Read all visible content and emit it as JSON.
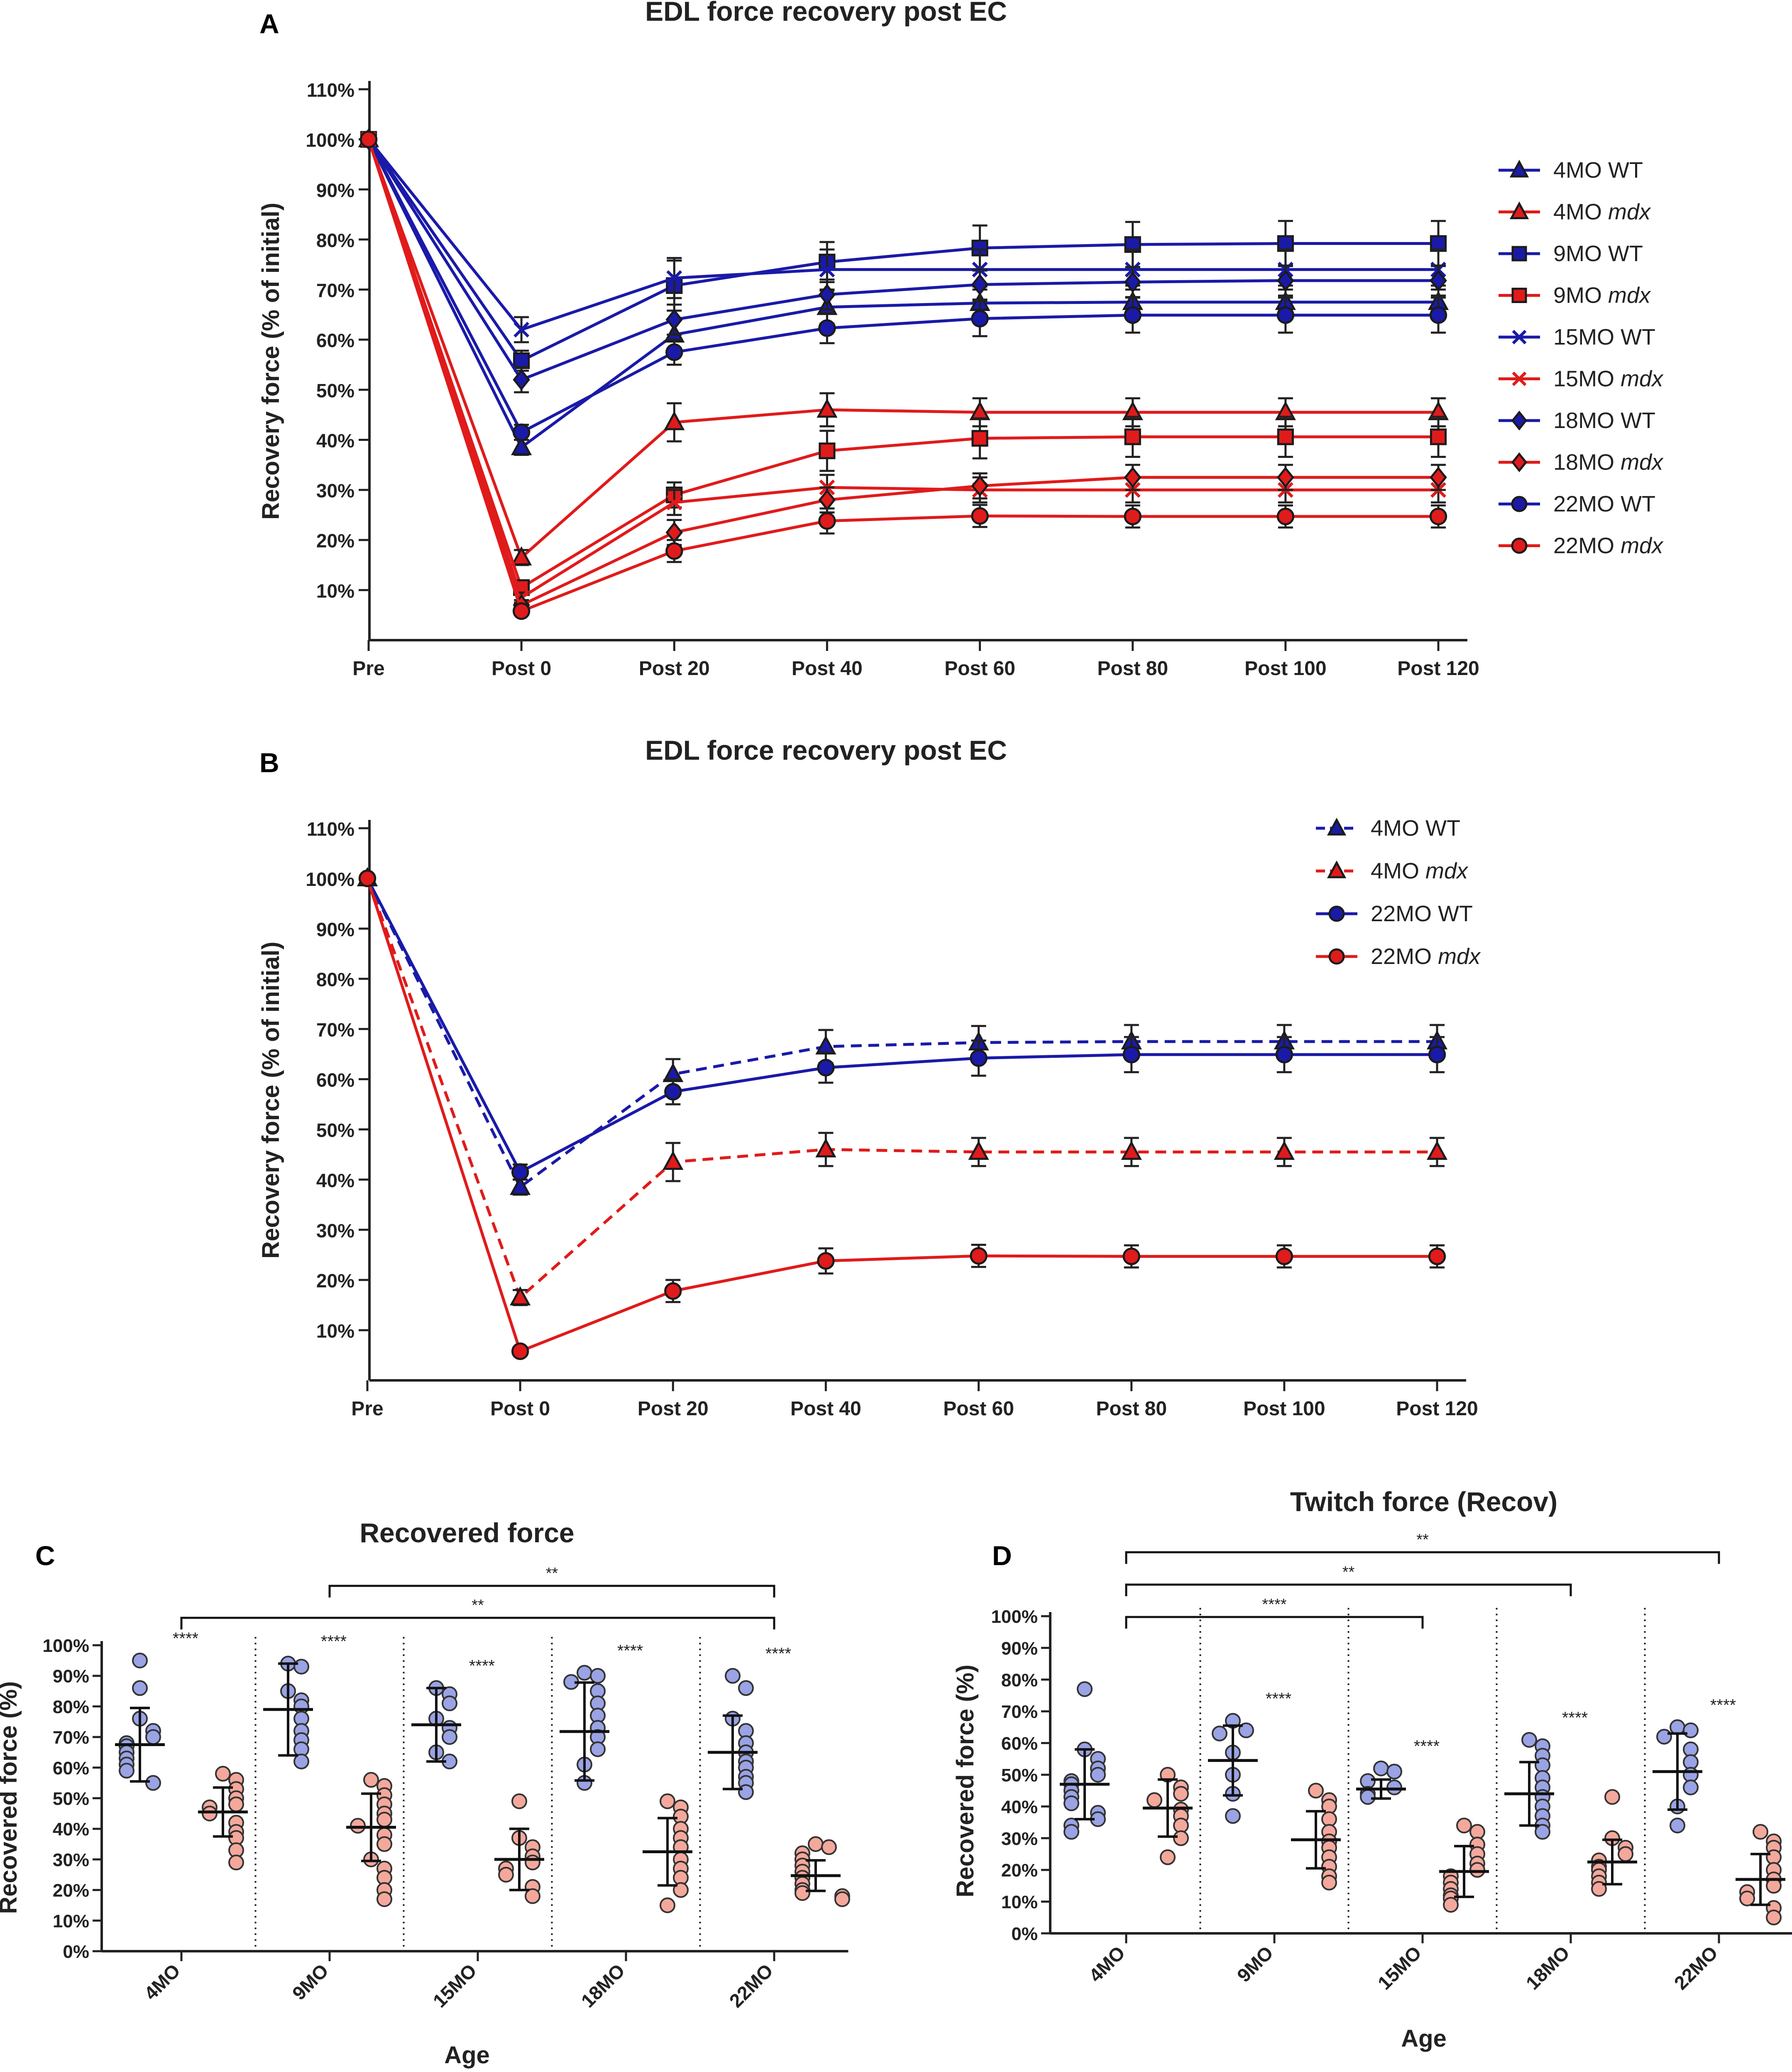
{
  "figure": {
    "panels": [
      "A",
      "B",
      "C",
      "D"
    ]
  },
  "colors": {
    "wt_line": "#1a1aa8",
    "mdx_line": "#e01b1b",
    "wt_dot": "#9aa3e4",
    "mdx_dot": "#f4a89c",
    "axis": "#222222"
  },
  "chart_data": [
    {
      "panel": "A",
      "type": "line",
      "title": "EDL force recovery post EC",
      "xlabel": "",
      "ylabel": "Recovery force (% of initial)",
      "categories": [
        "Pre",
        "Post 0",
        "Post 20",
        "Post 40",
        "Post 60",
        "Post 80",
        "Post 100",
        "Post 120"
      ],
      "ylim": [
        0,
        110
      ],
      "yticks": [
        10,
        20,
        30,
        40,
        50,
        60,
        70,
        80,
        90,
        100,
        110
      ],
      "ytick_labels": [
        "10%",
        "20%",
        "30%",
        "40%",
        "50%",
        "60%",
        "70%",
        "80%",
        "90%",
        "100%",
        "110%"
      ],
      "legend_position": "right",
      "series": [
        {
          "name": "4MO WT",
          "age": "4MO",
          "geno": "WT",
          "marker": "triangle",
          "values": [
            100,
            38.5,
            61,
            66.5,
            67.3,
            67.5,
            67.5,
            67.5
          ],
          "err": [
            0,
            1.5,
            3,
            3.3,
            3.3,
            3.3,
            3.3,
            3.3
          ]
        },
        {
          "name": "4MO mdx",
          "age": "4MO",
          "geno": "mdx",
          "marker": "triangle",
          "values": [
            100,
            16.5,
            43.5,
            46,
            45.5,
            45.5,
            45.5,
            45.5
          ],
          "err": [
            0,
            1.5,
            3.8,
            3.3,
            2.8,
            2.8,
            2.8,
            2.8
          ]
        },
        {
          "name": "9MO WT",
          "age": "9MO",
          "geno": "WT",
          "marker": "square",
          "values": [
            100,
            55.8,
            70.8,
            75.5,
            78.3,
            79,
            79.2,
            79.2
          ],
          "err": [
            0,
            2,
            5,
            4,
            4.5,
            4.5,
            4.5,
            4.5
          ]
        },
        {
          "name": "9MO mdx",
          "age": "9MO",
          "geno": "mdx",
          "marker": "square",
          "values": [
            100,
            10.5,
            29,
            37.8,
            40.3,
            40.6,
            40.6,
            40.6
          ],
          "err": [
            0,
            1,
            2.5,
            4,
            4,
            4,
            4,
            4
          ]
        },
        {
          "name": "15MO WT",
          "age": "15MO",
          "geno": "WT",
          "marker": "cross",
          "values": [
            100,
            62,
            72.3,
            74,
            74,
            74,
            74,
            74
          ],
          "err": [
            0,
            2.5,
            4,
            4,
            4,
            4,
            4,
            4
          ]
        },
        {
          "name": "15MO mdx",
          "age": "15MO",
          "geno": "mdx",
          "marker": "cross",
          "values": [
            100,
            8.5,
            27.5,
            30.5,
            30,
            30,
            30,
            30
          ],
          "err": [
            0,
            1,
            2.5,
            2.5,
            2.5,
            2.5,
            2.5,
            2.5
          ]
        },
        {
          "name": "18MO WT",
          "age": "18MO",
          "geno": "WT",
          "marker": "diamond",
          "values": [
            100,
            52,
            64,
            69,
            71,
            71.5,
            71.8,
            71.8
          ],
          "err": [
            0,
            2.5,
            3,
            3,
            3,
            3,
            3,
            3
          ]
        },
        {
          "name": "18MO mdx",
          "age": "18MO",
          "geno": "mdx",
          "marker": "diamond",
          "values": [
            100,
            7,
            21.5,
            28,
            30.8,
            32.5,
            32.5,
            32.5
          ],
          "err": [
            0,
            1,
            2.5,
            2.5,
            2.5,
            2.5,
            2.5,
            2.5
          ]
        },
        {
          "name": "22MO WT",
          "age": "22MO",
          "geno": "WT",
          "marker": "circle",
          "values": [
            100,
            41.5,
            57.5,
            62.3,
            64.2,
            64.9,
            64.9,
            64.9
          ],
          "err": [
            0,
            1.5,
            2.5,
            3,
            3.5,
            3.5,
            3.5,
            3.5
          ]
        },
        {
          "name": "22MO mdx",
          "age": "22MO",
          "geno": "mdx",
          "marker": "circle",
          "values": [
            100,
            5.8,
            17.8,
            23.8,
            24.8,
            24.7,
            24.7,
            24.7
          ],
          "err": [
            0,
            0.8,
            2.2,
            2.5,
            2.2,
            2.2,
            2.2,
            2.2
          ]
        }
      ]
    },
    {
      "panel": "B",
      "type": "line",
      "title": "EDL force recovery post EC",
      "xlabel": "",
      "ylabel": "Recovery force (% of initial)",
      "categories": [
        "Pre",
        "Post 0",
        "Post 20",
        "Post 40",
        "Post 60",
        "Post 80",
        "Post 100",
        "Post 120"
      ],
      "ylim": [
        0,
        110
      ],
      "yticks": [
        10,
        20,
        30,
        40,
        50,
        60,
        70,
        80,
        90,
        100,
        110
      ],
      "ytick_labels": [
        "10%",
        "20%",
        "30%",
        "40%",
        "50%",
        "60%",
        "70%",
        "80%",
        "90%",
        "100%",
        "110%"
      ],
      "legend_position": "top-right",
      "series": [
        {
          "name": "4MO WT",
          "age": "4MO",
          "geno": "WT",
          "marker": "triangle",
          "dashed": true,
          "values": [
            100,
            38.5,
            61,
            66.5,
            67.3,
            67.5,
            67.5,
            67.5
          ],
          "err": [
            0,
            1.5,
            3,
            3.3,
            3.3,
            3.3,
            3.3,
            3.3
          ]
        },
        {
          "name": "4MO mdx",
          "age": "4MO",
          "geno": "mdx",
          "marker": "triangle",
          "dashed": true,
          "values": [
            100,
            16.5,
            43.5,
            46,
            45.5,
            45.5,
            45.5,
            45.5
          ],
          "err": [
            0,
            1.5,
            3.8,
            3.3,
            2.8,
            2.8,
            2.8,
            2.8
          ]
        },
        {
          "name": "22MO WT",
          "age": "22MO",
          "geno": "WT",
          "marker": "circle",
          "dashed": false,
          "values": [
            100,
            41.5,
            57.5,
            62.3,
            64.2,
            64.9,
            64.9,
            64.9
          ],
          "err": [
            0,
            1.5,
            2.5,
            3,
            3.5,
            3.5,
            3.5,
            3.5
          ]
        },
        {
          "name": "22MO mdx",
          "age": "22MO",
          "geno": "mdx",
          "marker": "circle",
          "dashed": false,
          "values": [
            100,
            5.8,
            17.8,
            23.8,
            24.8,
            24.7,
            24.7,
            24.7
          ],
          "err": [
            0,
            0.8,
            2.2,
            2.5,
            2.2,
            2.2,
            2.2,
            2.2
          ]
        }
      ]
    },
    {
      "panel": "C",
      "type": "scatter",
      "title": "Recovered force",
      "xlabel": "Age",
      "ylabel": "Recovered force (%)",
      "categories": [
        "4MO",
        "9MO",
        "15MO",
        "18MO",
        "22MO"
      ],
      "ylim": [
        0,
        100
      ],
      "yticks": [
        0,
        10,
        20,
        30,
        40,
        50,
        60,
        70,
        80,
        90,
        100
      ],
      "ytick_labels": [
        "0%",
        "10%",
        "20%",
        "30%",
        "40%",
        "50%",
        "60%",
        "70%",
        "80%",
        "90%",
        "100%"
      ],
      "groups": [
        {
          "age": "4MO",
          "geno": "WT",
          "mean": 67.5,
          "sd": 12,
          "points": [
            95,
            86,
            76,
            72,
            70,
            68,
            67,
            65,
            63,
            61,
            59,
            55
          ]
        },
        {
          "age": "4MO",
          "geno": "mdx",
          "mean": 45.5,
          "sd": 8,
          "points": [
            58,
            56,
            53,
            50,
            48,
            47,
            45,
            42,
            39,
            37,
            33,
            29
          ]
        },
        {
          "age": "9MO",
          "geno": "WT",
          "mean": 79,
          "sd": 15,
          "points": [
            94,
            93,
            85,
            82,
            80,
            76,
            72,
            69,
            66,
            62
          ]
        },
        {
          "age": "9MO",
          "geno": "mdx",
          "mean": 40.5,
          "sd": 11,
          "points": [
            56,
            54,
            51,
            48,
            45,
            43,
            41,
            38,
            35,
            30,
            27,
            24,
            20,
            17
          ]
        },
        {
          "age": "15MO",
          "geno": "WT",
          "mean": 74,
          "sd": 12,
          "points": [
            86,
            84,
            81,
            76,
            73,
            70,
            65,
            62
          ]
        },
        {
          "age": "15MO",
          "geno": "mdx",
          "mean": 30,
          "sd": 10,
          "points": [
            49,
            37,
            34,
            31,
            29,
            27,
            25,
            21,
            18
          ]
        },
        {
          "age": "18MO",
          "geno": "WT",
          "mean": 71.8,
          "sd": 16,
          "points": [
            91,
            90,
            88,
            85,
            81,
            77,
            73,
            70,
            66,
            61,
            55
          ]
        },
        {
          "age": "18MO",
          "geno": "mdx",
          "mean": 32.5,
          "sd": 11,
          "points": [
            49,
            47,
            44,
            40,
            37,
            34,
            30,
            27,
            24,
            20,
            15
          ]
        },
        {
          "age": "22MO",
          "geno": "WT",
          "mean": 65,
          "sd": 12,
          "points": [
            90,
            86,
            76,
            72,
            68,
            65,
            62,
            60,
            57,
            55,
            52
          ]
        },
        {
          "age": "22MO",
          "geno": "mdx",
          "mean": 24.7,
          "sd": 5,
          "points": [
            35,
            34,
            32,
            30,
            28,
            26,
            24,
            22,
            20,
            19,
            18,
            17
          ]
        }
      ],
      "significance": [
        {
          "label": "****",
          "group": "4MO"
        },
        {
          "label": "****",
          "group": "9MO"
        },
        {
          "label": "****",
          "group": "15MO"
        },
        {
          "label": "****",
          "group": "18MO"
        },
        {
          "label": "****",
          "group": "22MO"
        }
      ],
      "brackets": [
        {
          "from": "9MO",
          "to": "22MO",
          "label": "**",
          "level": 2
        },
        {
          "from": "4MO",
          "to": "22MO",
          "label": "**",
          "level": 1
        }
      ]
    },
    {
      "panel": "D",
      "type": "scatter",
      "title": "Twitch force (Recov)",
      "xlabel": "Age",
      "ylabel": "Recovered force (%)",
      "categories": [
        "4MO",
        "9MO",
        "15MO",
        "18MO",
        "22MO"
      ],
      "ylim": [
        0,
        100
      ],
      "yticks": [
        0,
        10,
        20,
        30,
        40,
        50,
        60,
        70,
        80,
        90,
        100
      ],
      "ytick_labels": [
        "0%",
        "10%",
        "20%",
        "30%",
        "40%",
        "50%",
        "60%",
        "70%",
        "80%",
        "90%",
        "100%"
      ],
      "groups": [
        {
          "age": "4MO",
          "geno": "WT",
          "mean": 47,
          "sd": 11,
          "points": [
            77,
            58,
            55,
            52,
            50,
            48,
            47,
            45,
            43,
            41,
            38,
            36,
            34,
            32
          ]
        },
        {
          "age": "4MO",
          "geno": "mdx",
          "mean": 39.5,
          "sd": 9,
          "points": [
            50,
            46,
            44,
            42,
            39,
            37,
            34,
            30,
            24
          ]
        },
        {
          "age": "9MO",
          "geno": "WT",
          "mean": 54.5,
          "sd": 11,
          "points": [
            67,
            64,
            63,
            57,
            50,
            44,
            37
          ]
        },
        {
          "age": "9MO",
          "geno": "mdx",
          "mean": 29.5,
          "sd": 9,
          "points": [
            45,
            42,
            40,
            36,
            32,
            29,
            27,
            24,
            21,
            18,
            16
          ]
        },
        {
          "age": "15MO",
          "geno": "WT",
          "mean": 45.5,
          "sd": 3,
          "points": [
            52,
            51,
            48,
            46,
            44,
            43
          ]
        },
        {
          "age": "15MO",
          "geno": "mdx",
          "mean": 19.5,
          "sd": 8,
          "points": [
            34,
            32,
            28,
            25,
            22,
            20,
            18,
            16,
            14,
            12,
            11,
            9
          ]
        },
        {
          "age": "18MO",
          "geno": "WT",
          "mean": 44,
          "sd": 10,
          "points": [
            61,
            59,
            56,
            53,
            49,
            46,
            43,
            40,
            37,
            34,
            32
          ]
        },
        {
          "age": "18MO",
          "geno": "mdx",
          "mean": 22.5,
          "sd": 7,
          "points": [
            43,
            30,
            27,
            25,
            23,
            21,
            20,
            18,
            16,
            14
          ]
        },
        {
          "age": "22MO",
          "geno": "WT",
          "mean": 51,
          "sd": 12,
          "points": [
            65,
            64,
            62,
            58,
            54,
            50,
            46,
            40,
            34
          ]
        },
        {
          "age": "22MO",
          "geno": "mdx",
          "mean": 17,
          "sd": 8,
          "points": [
            32,
            29,
            27,
            24,
            20,
            17,
            15,
            13,
            11,
            8,
            5
          ]
        }
      ],
      "significance": [
        {
          "label": "****",
          "group": "9MO"
        },
        {
          "label": "****",
          "group": "15MO"
        },
        {
          "label": "****",
          "group": "18MO"
        },
        {
          "label": "****",
          "group": "22MO"
        }
      ],
      "brackets": [
        {
          "from": "4MO",
          "to": "22MO",
          "label": "**",
          "level": 3
        },
        {
          "from": "4MO",
          "to": "18MO",
          "label": "**",
          "level": 2
        },
        {
          "from": "4MO",
          "to": "15MO",
          "label": "****",
          "level": 1
        }
      ]
    }
  ]
}
